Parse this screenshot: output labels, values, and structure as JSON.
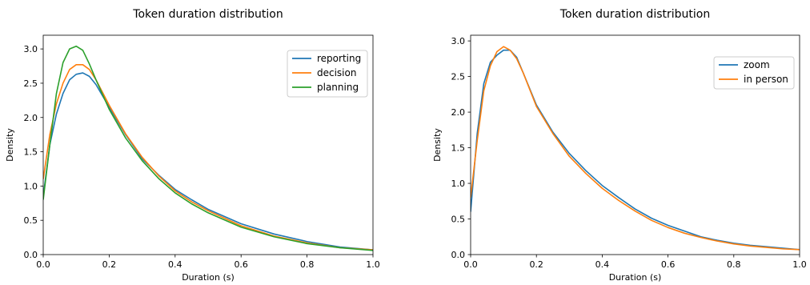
{
  "chart_data": [
    {
      "type": "line",
      "title": "Token duration distribution",
      "xlabel": "Duration (s)",
      "ylabel": "Density",
      "xlim": [
        0.0,
        1.0
      ],
      "ylim": [
        0.0,
        3.2
      ],
      "xticks": [
        "0.0",
        "0.2",
        "0.4",
        "0.6",
        "0.8",
        "1.0"
      ],
      "yticks": [
        "0.0",
        "0.5",
        "1.0",
        "1.5",
        "2.0",
        "2.5",
        "3.0"
      ],
      "legend_position": "upper-right",
      "series": [
        {
          "name": "reporting",
          "color": "#1f77b4",
          "x": [
            0.0,
            0.02,
            0.04,
            0.06,
            0.08,
            0.1,
            0.12,
            0.14,
            0.16,
            0.2,
            0.25,
            0.3,
            0.35,
            0.4,
            0.45,
            0.5,
            0.6,
            0.7,
            0.8,
            0.9,
            1.0
          ],
          "y": [
            0.85,
            1.6,
            2.05,
            2.35,
            2.55,
            2.63,
            2.65,
            2.6,
            2.48,
            2.15,
            1.75,
            1.4,
            1.16,
            0.95,
            0.8,
            0.66,
            0.45,
            0.3,
            0.19,
            0.11,
            0.07
          ]
        },
        {
          "name": "decision",
          "color": "#ff7f0e",
          "x": [
            0.0,
            0.02,
            0.04,
            0.06,
            0.08,
            0.1,
            0.12,
            0.14,
            0.16,
            0.2,
            0.25,
            0.3,
            0.35,
            0.4,
            0.45,
            0.5,
            0.6,
            0.7,
            0.8,
            0.9,
            1.0
          ],
          "y": [
            1.1,
            1.75,
            2.2,
            2.5,
            2.7,
            2.77,
            2.77,
            2.7,
            2.55,
            2.18,
            1.76,
            1.42,
            1.15,
            0.93,
            0.77,
            0.64,
            0.42,
            0.27,
            0.17,
            0.1,
            0.07
          ]
        },
        {
          "name": "planning",
          "color": "#2ca02c",
          "x": [
            0.0,
            0.02,
            0.04,
            0.06,
            0.08,
            0.1,
            0.12,
            0.14,
            0.16,
            0.2,
            0.25,
            0.3,
            0.35,
            0.4,
            0.45,
            0.5,
            0.6,
            0.7,
            0.8,
            0.9,
            1.0
          ],
          "y": [
            0.8,
            1.6,
            2.35,
            2.8,
            3.0,
            3.04,
            2.98,
            2.78,
            2.55,
            2.12,
            1.7,
            1.37,
            1.11,
            0.9,
            0.74,
            0.61,
            0.4,
            0.26,
            0.16,
            0.1,
            0.06
          ]
        }
      ]
    },
    {
      "type": "line",
      "title": "Token duration distribution",
      "xlabel": "Duration (s)",
      "ylabel": "Density",
      "xlim": [
        0.0,
        1.0
      ],
      "ylim": [
        0.0,
        3.08
      ],
      "xticks": [
        "0.0",
        "0.2",
        "0.4",
        "0.6",
        "0.8",
        "1.0"
      ],
      "yticks": [
        "0.0",
        "0.5",
        "1.0",
        "1.5",
        "2.0",
        "2.5",
        "3.0"
      ],
      "legend_position": "upper-right",
      "series": [
        {
          "name": "zoom",
          "color": "#1f77b4",
          "x": [
            0.0,
            0.02,
            0.04,
            0.06,
            0.08,
            0.1,
            0.12,
            0.14,
            0.16,
            0.2,
            0.25,
            0.3,
            0.35,
            0.4,
            0.45,
            0.5,
            0.55,
            0.6,
            0.65,
            0.7,
            0.75,
            0.8,
            0.85,
            0.9,
            0.95,
            1.0
          ],
          "y": [
            0.6,
            1.7,
            2.4,
            2.7,
            2.8,
            2.87,
            2.87,
            2.77,
            2.55,
            2.1,
            1.72,
            1.42,
            1.18,
            0.97,
            0.8,
            0.64,
            0.51,
            0.41,
            0.33,
            0.25,
            0.2,
            0.16,
            0.13,
            0.11,
            0.09,
            0.07
          ]
        },
        {
          "name": "in person",
          "color": "#ff7f0e",
          "x": [
            0.0,
            0.02,
            0.04,
            0.06,
            0.08,
            0.1,
            0.12,
            0.14,
            0.16,
            0.2,
            0.25,
            0.3,
            0.35,
            0.4,
            0.45,
            0.5,
            0.55,
            0.6,
            0.65,
            0.7,
            0.75,
            0.8,
            0.85,
            0.9,
            0.95,
            1.0
          ],
          "y": [
            0.8,
            1.6,
            2.3,
            2.65,
            2.85,
            2.92,
            2.87,
            2.75,
            2.55,
            2.08,
            1.7,
            1.38,
            1.14,
            0.93,
            0.76,
            0.61,
            0.48,
            0.38,
            0.3,
            0.24,
            0.19,
            0.15,
            0.12,
            0.1,
            0.08,
            0.07
          ]
        }
      ]
    }
  ]
}
